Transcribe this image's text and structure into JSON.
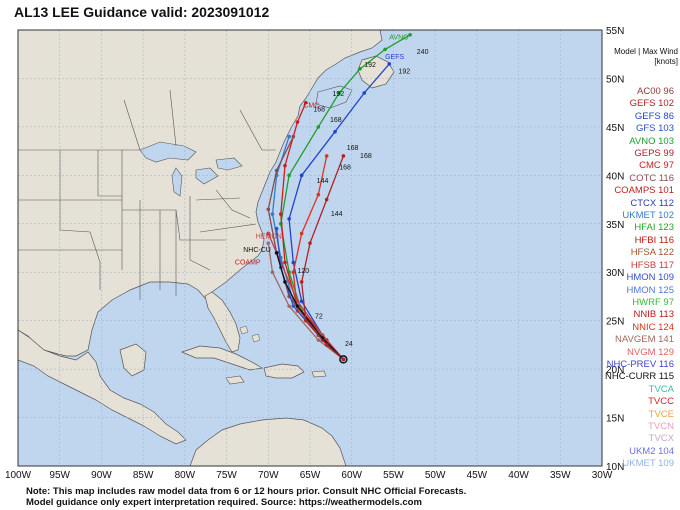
{
  "title": "AL13 LEE Guidance valid: 2023091012",
  "legend_header": [
    "Model | Max Wind",
    "[knots]"
  ],
  "legend": [
    {
      "model": "AC00",
      "wind": "96",
      "color": "#8b3a3a"
    },
    {
      "model": "GEFS",
      "wind": "102",
      "color": "#b22222"
    },
    {
      "model": "GEFS",
      "wind": "86",
      "color": "#2244cc"
    },
    {
      "model": "GFS",
      "wind": "103",
      "color": "#2a52be"
    },
    {
      "model": "AVNO",
      "wind": "103",
      "color": "#1f9e2c"
    },
    {
      "model": "GEPS",
      "wind": "99",
      "color": "#b0202a"
    },
    {
      "model": "CMC",
      "wind": "97",
      "color": "#d11b1b"
    },
    {
      "model": "COTC",
      "wind": "116",
      "color": "#8a4b4b"
    },
    {
      "model": "COAMPS",
      "wind": "101",
      "color": "#c02020"
    },
    {
      "model": "CTCX",
      "wind": "112",
      "color": "#2b3db0"
    },
    {
      "model": "UKMET",
      "wind": "102",
      "color": "#3a78c9"
    },
    {
      "model": "HFAI",
      "wind": "123",
      "color": "#2aa02a"
    },
    {
      "model": "HFBI",
      "wind": "116",
      "color": "#c01818"
    },
    {
      "model": "HFSA",
      "wind": "122",
      "color": "#a0522d"
    },
    {
      "model": "HFSB",
      "wind": "117",
      "color": "#c83c3c"
    },
    {
      "model": "HMON",
      "wind": "109",
      "color": "#3050c8"
    },
    {
      "model": "HMON",
      "wind": "125",
      "color": "#5078d8"
    },
    {
      "model": "HWRF",
      "wind": "97",
      "color": "#38b838"
    },
    {
      "model": "NNIB",
      "wind": "113",
      "color": "#b81c1c"
    },
    {
      "model": "NNIC",
      "wind": "124",
      "color": "#e0301e"
    },
    {
      "model": "NAVGEM",
      "wind": "141",
      "color": "#a06a60"
    },
    {
      "model": "NVGM",
      "wind": "129",
      "color": "#e06262"
    },
    {
      "model": "NHC-PREV",
      "wind": "116",
      "color": "#4040d0"
    },
    {
      "model": "NHC-CURR",
      "wind": "115",
      "color": "#111111"
    },
    {
      "model": "TVCA",
      "wind": "",
      "color": "#38c0a0"
    },
    {
      "model": "TVCC",
      "wind": "",
      "color": "#d02828"
    },
    {
      "model": "TVCE",
      "wind": "",
      "color": "#f0a040"
    },
    {
      "model": "TVCN",
      "wind": "",
      "color": "#e8a0b0"
    },
    {
      "model": "TVCX",
      "wind": "",
      "color": "#c8a8c8"
    },
    {
      "model": "UKM2",
      "wind": "104",
      "color": "#7070e0"
    },
    {
      "model": "UKMET",
      "wind": "109",
      "color": "#8fb4e6"
    }
  ],
  "axes": {
    "lon_min": -100,
    "lon_max": -30,
    "lat_min": 10,
    "lat_max": 55,
    "lon_labels": [
      "100W",
      "95W",
      "90W",
      "85W",
      "80W",
      "75W",
      "70W",
      "65W",
      "60W",
      "55W",
      "50W",
      "45W",
      "40W",
      "35W",
      "30W"
    ],
    "lat_labels": [
      "10N",
      "15N",
      "20N",
      "25N",
      "30N",
      "35N",
      "40N",
      "45N",
      "50N",
      "55N"
    ]
  },
  "colors": {
    "ocean": "#c0d6ee",
    "land": "#e6e1d6",
    "border": "#444444"
  },
  "track_labels": [
    {
      "text": "AVNO",
      "lon": -55.5,
      "lat": 54.0,
      "color": "#1f9e2c"
    },
    {
      "text": "240",
      "lon": -52.2,
      "lat": 52.5,
      "color": "#111111"
    },
    {
      "text": "GEFS",
      "lon": -56.0,
      "lat": 52.0,
      "color": "#2244cc"
    },
    {
      "text": "192",
      "lon": -58.5,
      "lat": 51.2,
      "color": "#111111"
    },
    {
      "text": "192",
      "lon": -54.4,
      "lat": 50.5,
      "color": "#111111"
    },
    {
      "text": "192",
      "lon": -62.3,
      "lat": 48.2,
      "color": "#111111"
    },
    {
      "text": "CMC",
      "lon": -65.8,
      "lat": 47.0,
      "color": "#d11b1b"
    },
    {
      "text": "168",
      "lon": -64.6,
      "lat": 46.6,
      "color": "#111111"
    },
    {
      "text": "168",
      "lon": -62.6,
      "lat": 45.5,
      "color": "#111111"
    },
    {
      "text": "168",
      "lon": -60.6,
      "lat": 42.6,
      "color": "#111111"
    },
    {
      "text": "168",
      "lon": -59.0,
      "lat": 41.8,
      "color": "#111111"
    },
    {
      "text": "168",
      "lon": -61.5,
      "lat": 40.6,
      "color": "#111111"
    },
    {
      "text": "144",
      "lon": -64.2,
      "lat": 39.2,
      "color": "#111111"
    },
    {
      "text": "144",
      "lon": -62.5,
      "lat": 35.8,
      "color": "#111111"
    },
    {
      "text": "HEMON",
      "lon": -71.5,
      "lat": 33.5,
      "color": "#c83c3c"
    },
    {
      "text": "NHC-CU",
      "lon": -73.0,
      "lat": 32.1,
      "color": "#111111"
    },
    {
      "text": "COAMP",
      "lon": -74.0,
      "lat": 30.8,
      "color": "#c02020"
    },
    {
      "text": "120",
      "lon": -66.5,
      "lat": 29.9,
      "color": "#111111"
    },
    {
      "text": "72",
      "lon": -64.4,
      "lat": 25.2,
      "color": "#111111"
    },
    {
      "text": "24",
      "lon": -60.8,
      "lat": 22.4,
      "color": "#111111"
    }
  ],
  "tracks": [
    {
      "color": "#1f9e2c",
      "points": [
        [
          -61.0,
          21.0
        ],
        [
          -63.0,
          23.0
        ],
        [
          -66.0,
          26.0
        ],
        [
          -67.5,
          30.0
        ],
        [
          -68.5,
          35.0
        ],
        [
          -67.5,
          40.0
        ],
        [
          -64.0,
          45.0
        ],
        [
          -61.5,
          48.5
        ],
        [
          -59.0,
          51.0
        ],
        [
          -56.0,
          53.0
        ],
        [
          -53.0,
          54.5
        ]
      ]
    },
    {
      "color": "#2244cc",
      "points": [
        [
          -61.0,
          21.0
        ],
        [
          -63.5,
          23.5
        ],
        [
          -66.0,
          27.0
        ],
        [
          -67.0,
          31.0
        ],
        [
          -67.5,
          35.5
        ],
        [
          -66.0,
          40.0
        ],
        [
          -62.0,
          44.5
        ],
        [
          -58.5,
          48.5
        ],
        [
          -55.5,
          51.5
        ]
      ]
    },
    {
      "color": "#d11b1b",
      "points": [
        [
          -61.0,
          21.0
        ],
        [
          -63.0,
          23.0
        ],
        [
          -66.5,
          26.5
        ],
        [
          -68.0,
          31.0
        ],
        [
          -68.5,
          36.0
        ],
        [
          -68.0,
          41.0
        ],
        [
          -66.5,
          45.5
        ],
        [
          -65.5,
          47.5
        ]
      ]
    },
    {
      "color": "#3a78c9",
      "points": [
        [
          -61.0,
          21.0
        ],
        [
          -64.0,
          23.5
        ],
        [
          -67.0,
          27.0
        ],
        [
          -68.5,
          31.5
        ],
        [
          -69.5,
          36.0
        ],
        [
          -69.0,
          40.0
        ],
        [
          -67.5,
          44.0
        ]
      ]
    },
    {
      "color": "#8a4b4b",
      "points": [
        [
          -61.0,
          21.0
        ],
        [
          -64.0,
          23.5
        ],
        [
          -67.5,
          27.5
        ],
        [
          -69.0,
          32.0
        ],
        [
          -70.0,
          36.5
        ],
        [
          -69.0,
          40.5
        ],
        [
          -67.0,
          44.0
        ]
      ]
    },
    {
      "color": "#e0301e",
      "points": [
        [
          -61.0,
          21.0
        ],
        [
          -63.5,
          23.0
        ],
        [
          -66.5,
          26.0
        ],
        [
          -67.0,
          30.0
        ],
        [
          -66.0,
          34.0
        ],
        [
          -64.0,
          38.0
        ],
        [
          -63.0,
          42.0
        ]
      ]
    },
    {
      "color": "#c83c3c",
      "points": [
        [
          -61.0,
          21.0
        ],
        [
          -63.5,
          23.5
        ],
        [
          -66.5,
          27.0
        ],
        [
          -68.5,
          31.0
        ],
        [
          -70.0,
          34.0
        ]
      ]
    },
    {
      "color": "#3050c8",
      "points": [
        [
          -61.0,
          21.0
        ],
        [
          -63.5,
          23.0
        ],
        [
          -67.0,
          26.5
        ],
        [
          -68.5,
          30.5
        ],
        [
          -69.0,
          34.5
        ]
      ]
    },
    {
      "color": "#111111",
      "points": [
        [
          -61.0,
          21.0
        ],
        [
          -63.5,
          23.2
        ],
        [
          -66.5,
          26.5
        ],
        [
          -68.0,
          29.0
        ],
        [
          -69.0,
          32.0
        ]
      ]
    },
    {
      "color": "#a06a60",
      "points": [
        [
          -61.0,
          21.0
        ],
        [
          -64.0,
          23.0
        ],
        [
          -67.5,
          26.5
        ],
        [
          -69.5,
          30.0
        ],
        [
          -70.0,
          33.0
        ]
      ]
    },
    {
      "color": "#b22222",
      "points": [
        [
          -61.0,
          21.0
        ],
        [
          -63.0,
          22.5
        ],
        [
          -65.5,
          25.0
        ],
        [
          -66.0,
          29.0
        ],
        [
          -65.0,
          33.0
        ],
        [
          -63.0,
          37.5
        ],
        [
          -61.0,
          42.0
        ]
      ]
    }
  ],
  "note_lines": [
    "Note: This map includes raw model data from 6 or 12 hours prior. Consult NHC Official Forecasts.",
    "Model guidance only expert interpretation required. Source: https://weathermodels.com"
  ]
}
